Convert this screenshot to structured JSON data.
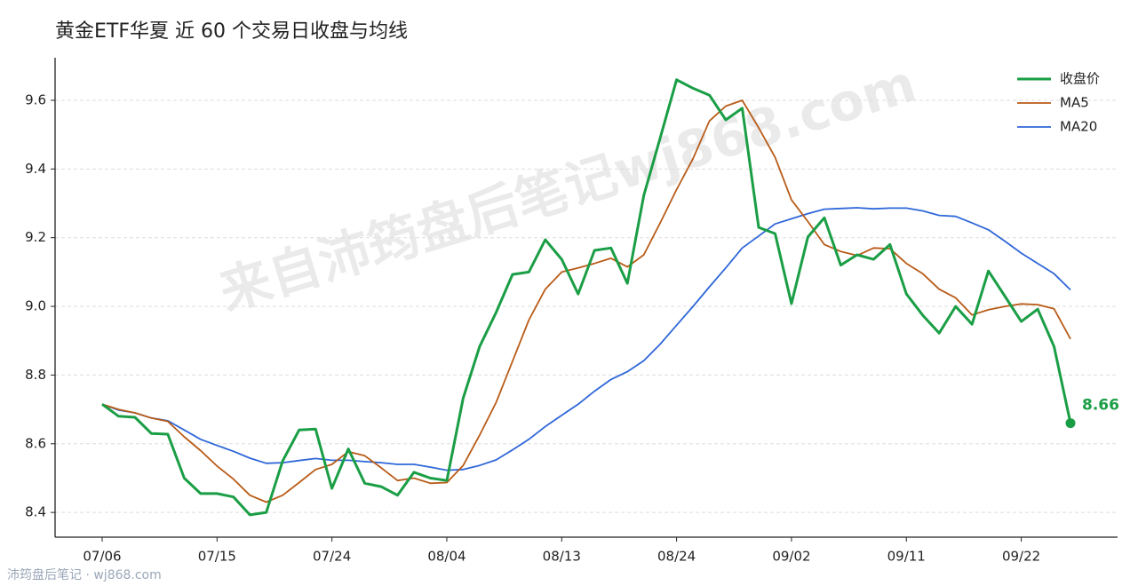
{
  "chart_data": {
    "type": "line",
    "title": "黄金ETF华夏 近 60 个交易日收盘与均线",
    "watermark": "来自沛筠盘后笔记wj868.com",
    "footer": "沛筠盘后笔记 · wj868.com",
    "categories": [
      "07/06",
      null,
      null,
      null,
      null,
      null,
      null,
      "07/15",
      null,
      null,
      null,
      null,
      null,
      null,
      "07/24",
      null,
      null,
      null,
      null,
      null,
      null,
      "08/04",
      null,
      null,
      null,
      null,
      null,
      null,
      "08/13",
      null,
      null,
      null,
      null,
      null,
      null,
      "08/24",
      null,
      null,
      null,
      null,
      null,
      null,
      "09/02",
      null,
      null,
      null,
      null,
      null,
      null,
      "09/11",
      null,
      null,
      null,
      null,
      null,
      null,
      "09/22",
      null,
      null,
      null
    ],
    "series": [
      {
        "name": "收盘价",
        "color": "#1a9e45",
        "width": 3,
        "values": [
          8.715,
          8.68,
          8.677,
          8.63,
          8.628,
          8.5,
          8.455,
          8.455,
          8.445,
          8.393,
          8.4,
          8.55,
          8.64,
          8.643,
          8.47,
          8.585,
          8.485,
          8.475,
          8.45,
          8.517,
          8.5,
          8.493,
          8.733,
          8.883,
          8.982,
          9.093,
          9.1,
          9.194,
          9.137,
          9.036,
          9.163,
          9.17,
          9.067,
          9.323,
          9.49,
          9.66,
          9.635,
          9.615,
          9.543,
          9.577,
          9.23,
          9.212,
          9.008,
          9.202,
          9.258,
          9.12,
          9.15,
          9.137,
          9.18,
          9.036,
          8.974,
          8.922,
          9.0,
          8.948,
          9.103,
          9.03,
          8.956,
          8.992,
          8.883,
          8.66
        ]
      },
      {
        "name": "MA5",
        "color": "#b85b17",
        "width": 1.8,
        "values": [
          8.715,
          8.7,
          8.69,
          8.675,
          8.665,
          8.62,
          8.58,
          8.535,
          8.497,
          8.45,
          8.43,
          8.45,
          8.487,
          8.525,
          8.54,
          8.577,
          8.565,
          8.53,
          8.493,
          8.5,
          8.485,
          8.487,
          8.537,
          8.625,
          8.72,
          8.84,
          8.96,
          9.05,
          9.1,
          9.112,
          9.125,
          9.14,
          9.115,
          9.15,
          9.243,
          9.34,
          9.43,
          9.54,
          9.583,
          9.6,
          9.52,
          9.434,
          9.31,
          9.247,
          9.18,
          9.16,
          9.148,
          9.17,
          9.168,
          9.125,
          9.095,
          9.05,
          9.025,
          8.975,
          8.99,
          9.0,
          9.007,
          9.005,
          8.993,
          8.905
        ]
      },
      {
        "name": "MA20",
        "color": "#2f67d8",
        "width": 1.8,
        "values": [
          8.715,
          8.698,
          8.69,
          8.675,
          8.667,
          8.64,
          8.613,
          8.595,
          8.578,
          8.558,
          8.543,
          8.545,
          8.551,
          8.557,
          8.552,
          8.552,
          8.548,
          8.545,
          8.54,
          8.54,
          8.532,
          8.523,
          8.525,
          8.537,
          8.553,
          8.582,
          8.613,
          8.65,
          8.683,
          8.715,
          8.753,
          8.787,
          8.81,
          8.842,
          8.89,
          8.945,
          9.0,
          9.057,
          9.112,
          9.17,
          9.205,
          9.24,
          9.255,
          9.27,
          9.283,
          9.285,
          9.287,
          9.284,
          9.286,
          9.286,
          9.278,
          9.265,
          9.262,
          9.243,
          9.223,
          9.19,
          9.155,
          9.125,
          9.095,
          9.048
        ]
      }
    ],
    "ylim": [
      8.328,
      9.724
    ],
    "yticks": [
      8.4,
      8.6,
      8.8,
      {
        "value": 9,
        "label": "9.0"
      },
      9.2,
      9.4,
      9.6
    ],
    "grid": true,
    "legend": "upper right"
  }
}
